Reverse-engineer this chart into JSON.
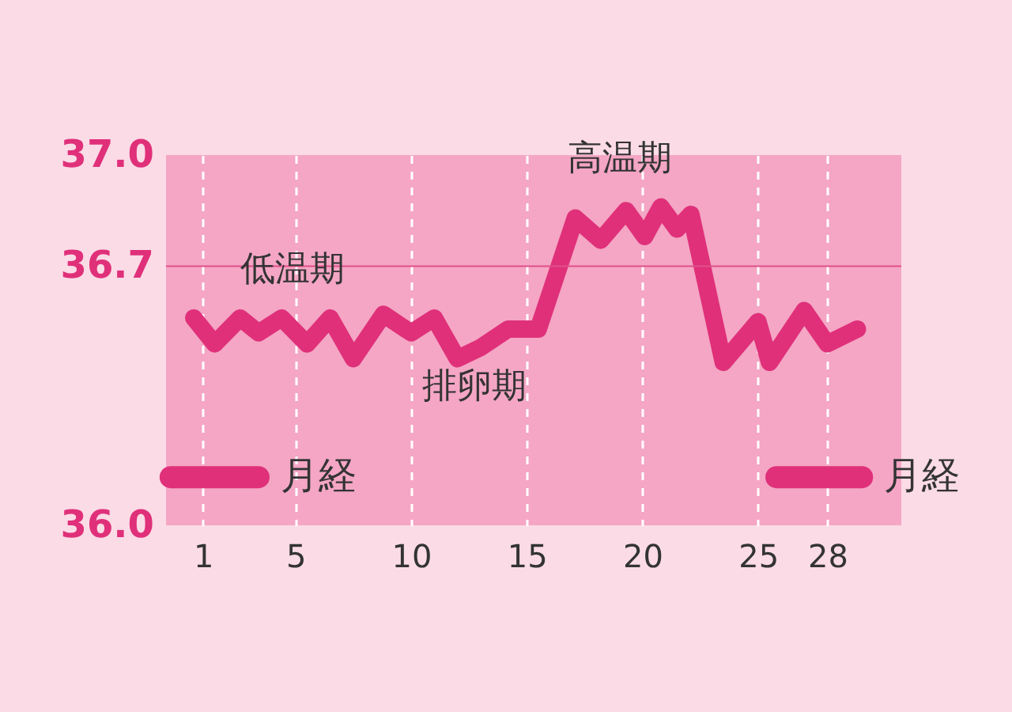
{
  "chart_data": {
    "type": "line",
    "xlim": [
      -0.6,
      31.2
    ],
    "ylim": [
      36.0,
      37.0
    ],
    "xticks": [
      1,
      5,
      10,
      15,
      20,
      25,
      28
    ],
    "yticks": [
      {
        "value": 36.0,
        "label": "36.0"
      },
      {
        "value": 36.7,
        "label": "36.7"
      },
      {
        "value": 37.0,
        "label": "37.0"
      }
    ],
    "grid": "x",
    "ref_lines": [
      {
        "axis": "y",
        "value": 36.7,
        "color": "#e0508a"
      }
    ],
    "series": [
      {
        "color": "#e0307a",
        "x": [
          0.6,
          1.5,
          2.6,
          3.4,
          4.4,
          5.5,
          6.5,
          7.5,
          8.8,
          10.0,
          11.0,
          12.0,
          13.0,
          14.2,
          15.5,
          17.1,
          18.2,
          19.3,
          20.1,
          20.8,
          21.5,
          22.1,
          23.5,
          25.0,
          25.5,
          27.0,
          28.0,
          29.3
        ],
        "values": [
          36.56,
          36.49,
          36.56,
          36.52,
          36.56,
          36.49,
          36.56,
          36.45,
          36.57,
          36.52,
          36.56,
          36.45,
          36.48,
          36.53,
          36.53,
          36.83,
          36.77,
          36.85,
          36.78,
          36.86,
          36.8,
          36.84,
          36.44,
          36.55,
          36.44,
          36.58,
          36.49,
          36.53
        ]
      },
      {
        "name": "月経",
        "color": "#e0307a",
        "x": [
          -0.4,
          3.4
        ],
        "values": [
          36.13,
          36.13
        ]
      },
      {
        "name": "月経",
        "color": "#e0307a",
        "x": [
          25.8,
          29.5
        ],
        "values": [
          36.13,
          36.13
        ]
      }
    ],
    "annotations": [
      "低温期",
      "排卵期",
      "高温期"
    ]
  }
}
